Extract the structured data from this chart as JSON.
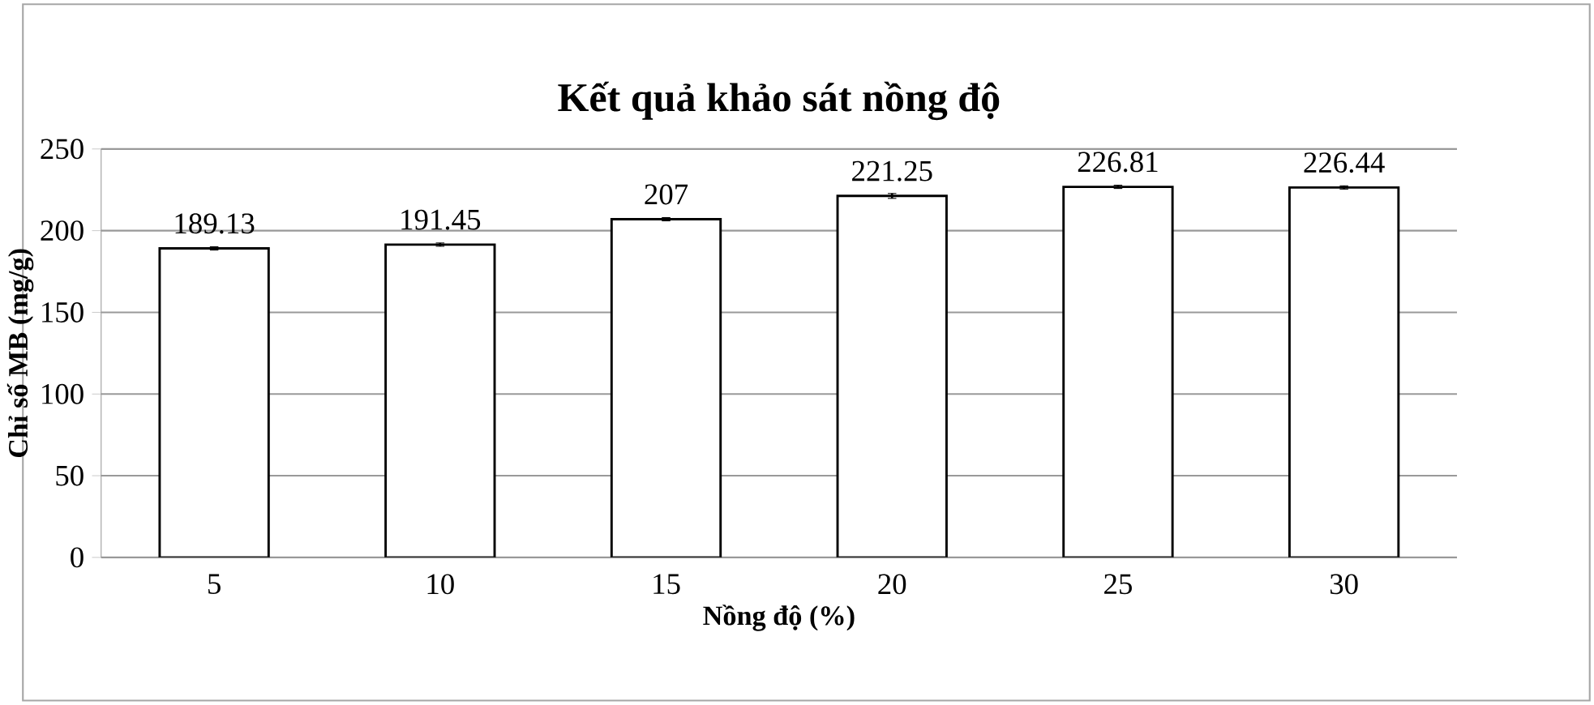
{
  "chart_data": {
    "type": "bar",
    "title": "Kết quả khảo sát nồng độ",
    "xlabel": "Nồng độ (%)",
    "ylabel": "Chỉ số MB (mg/g)",
    "categories": [
      "5",
      "10",
      "15",
      "20",
      "25",
      "30"
    ],
    "values": [
      189.13,
      191.45,
      207,
      221.25,
      226.81,
      226.44
    ],
    "errors": [
      1,
      1,
      1,
      1.5,
      1,
      1
    ],
    "color": "#ffffff",
    "ylim": [
      0,
      250
    ],
    "yticks": [
      0,
      50,
      100,
      150,
      200,
      250
    ],
    "grid": "y",
    "data_labels": true
  }
}
